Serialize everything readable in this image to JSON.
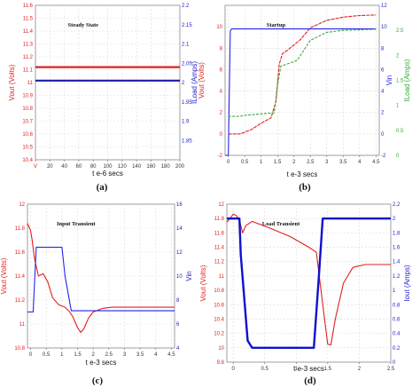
{
  "chart_data": [
    {
      "type": "line",
      "caption": "(a)",
      "title": "Steady State",
      "xlabel": "t e-6 secs",
      "ylabel_left": "Vout (Volts)",
      "ylabel_right": "ILoad (Amps)",
      "xlim": [
        0,
        200
      ],
      "ylim_left": [
        10.4,
        11.6
      ],
      "ylim_right": [
        1.8,
        2.2
      ],
      "xticks": [
        0,
        20,
        40,
        60,
        80,
        100,
        120,
        140,
        160,
        180,
        200
      ],
      "xtick_labels": [
        "V",
        "20",
        "40",
        "60",
        "80",
        "100",
        "120",
        "140",
        "160",
        "180",
        "200"
      ],
      "yticks_left": [
        10.4,
        10.5,
        10.6,
        10.7,
        10.8,
        10.9,
        11,
        11.1,
        11.2,
        11.3,
        11.4,
        11.5,
        11.6
      ],
      "yticks_right": [
        1.8,
        1.85,
        1.9,
        1.95,
        2,
        2.05,
        2.1,
        2.15,
        2.2
      ],
      "ytick_labels_right": [
        "",
        "1.85",
        "1.9",
        "1.95",
        "2",
        "2.05",
        "2.1",
        "2.15",
        "2.2"
      ],
      "grid": true,
      "series": [
        {
          "axis": "left",
          "color": "#e02020",
          "x": [
            0,
            200
          ],
          "y": [
            11.12,
            11.12
          ]
        },
        {
          "axis": "right",
          "color": "#1a1aaa",
          "x": [
            0,
            200
          ],
          "y": [
            2.005,
            2.005
          ]
        }
      ]
    },
    {
      "type": "line",
      "caption": "(b)",
      "title": "Startup",
      "xlabel": "t e-3 secs",
      "ylabel_left": "Vout (Volts)",
      "ylabel_right": "Vin",
      "ylabel_right2": "ILoad (Amps)",
      "xlim": [
        -0.1,
        4.6
      ],
      "ylim_left": [
        -2,
        12
      ],
      "ylim_right": [
        -2,
        12
      ],
      "ylim_right2": [
        0,
        3
      ],
      "xticks": [
        0,
        0.5,
        1,
        1.5,
        2,
        2.5,
        3,
        3.5,
        4,
        4.5
      ],
      "yticks_left": [
        -2,
        0,
        2,
        4,
        6,
        8,
        10
      ],
      "yticks_right": [
        -2,
        0,
        2,
        4,
        6,
        8,
        10,
        12
      ],
      "yticks_right2": [
        0,
        0.5,
        1,
        1.5,
        2,
        2.5
      ],
      "grid": true,
      "series": [
        {
          "axis": "left",
          "color": "#e02020",
          "x": [
            0,
            0.35,
            0.45,
            0.7,
            1,
            1.3,
            1.45,
            1.55,
            1.65,
            1.8,
            2.2,
            2.5,
            3,
            3.5,
            4,
            4.5
          ],
          "y": [
            0,
            0,
            0.1,
            0.4,
            1,
            1.5,
            3,
            6.5,
            7.5,
            7.8,
            8.8,
            9.9,
            10.6,
            10.9,
            11.05,
            11.1
          ]
        },
        {
          "axis": "right",
          "color": "#2222ee",
          "x": [
            -0.1,
            0,
            0.02,
            0.06,
            0.1,
            0.5,
            2.5,
            4.5
          ],
          "y": [
            -2,
            -2,
            2,
            9.6,
            9.8,
            9.8,
            9.8,
            9.8
          ]
        },
        {
          "axis": "right2",
          "color": "#3aaa3a",
          "x": [
            0,
            0.35,
            0.5,
            1.4,
            1.5,
            1.6,
            2.1,
            2.5,
            3,
            3.5,
            4.5
          ],
          "y": [
            0.78,
            0.78,
            0.8,
            0.85,
            1.4,
            1.78,
            1.9,
            2.3,
            2.46,
            2.5,
            2.52
          ]
        }
      ]
    },
    {
      "type": "line",
      "caption": "(c)",
      "title": "Input Transient",
      "xlabel": "t e-3 secs",
      "ylabel_left": "Vout (Volts)",
      "ylabel_right": "Vin",
      "xlim": [
        -0.1,
        4.6
      ],
      "ylim_left": [
        10.8,
        12
      ],
      "ylim_right": [
        4,
        16
      ],
      "xticks": [
        0,
        0.5,
        1,
        1.5,
        2,
        2.5,
        3,
        3.5,
        4,
        4.5
      ],
      "yticks_left": [
        10.8,
        11,
        11.2,
        11.4,
        11.6,
        11.8,
        12
      ],
      "yticks_right": [
        4,
        6,
        8,
        10,
        12,
        14,
        16
      ],
      "grid": true,
      "series": [
        {
          "axis": "left",
          "color": "#e02020",
          "x": [
            -0.1,
            0,
            0.05,
            0.12,
            0.25,
            0.4,
            0.55,
            0.7,
            0.9,
            1.1,
            1.25,
            1.35,
            1.5,
            1.6,
            1.7,
            1.85,
            2,
            2.3,
            2.6,
            3,
            4,
            4.6
          ],
          "y": [
            11.84,
            11.78,
            11.7,
            11.55,
            11.4,
            11.42,
            11.35,
            11.22,
            11.16,
            11.14,
            11.1,
            11.06,
            10.97,
            10.93,
            10.96,
            11.05,
            11.1,
            11.13,
            11.14,
            11.14,
            11.14,
            11.14
          ]
        },
        {
          "axis": "right",
          "color": "#2222ee",
          "x": [
            -0.1,
            0.08,
            0.18,
            1.0,
            1.1,
            1.3,
            4.6
          ],
          "y": [
            7,
            7,
            12.4,
            12.4,
            10,
            7.1,
            7.1
          ]
        }
      ]
    },
    {
      "type": "line",
      "caption": "(d)",
      "title": "Load Transient",
      "xlabel": "t e-3 secs",
      "ylabel_left": "Vout (Volts)",
      "ylabel_right": "Iout (Amps)",
      "xlim": [
        -0.1,
        2.5
      ],
      "ylim_left": [
        9.8,
        12
      ],
      "ylim_right": [
        0,
        2.2
      ],
      "xticks": [
        0,
        0.5,
        1,
        1.5,
        2,
        2.5
      ],
      "yticks_left": [
        9.8,
        10,
        10.2,
        10.4,
        10.6,
        10.8,
        11,
        11.2,
        11.4,
        11.6,
        11.8,
        12
      ],
      "yticks_right": [
        0,
        0.2,
        0.4,
        0.6,
        0.8,
        1,
        1.2,
        1.4,
        1.6,
        1.8,
        2,
        2.2
      ],
      "grid": true,
      "series": [
        {
          "axis": "left",
          "color": "#e02020",
          "x": [
            -0.1,
            -0.05,
            0,
            0.05,
            0.1,
            0.15,
            0.2,
            0.3,
            0.6,
            0.9,
            1.2,
            1.32,
            1.38,
            1.45,
            1.5,
            1.55,
            1.62,
            1.75,
            1.9,
            2.1,
            2.5
          ],
          "y": [
            11.75,
            11.8,
            11.86,
            11.84,
            11.78,
            11.6,
            11.7,
            11.76,
            11.66,
            11.55,
            11.4,
            11.33,
            10.9,
            10.4,
            10.05,
            10.04,
            10.4,
            10.9,
            11.12,
            11.16,
            11.16
          ]
        },
        {
          "axis": "right",
          "color": "#1111cc",
          "x": [
            -0.1,
            0.05,
            0.1,
            0.12,
            0.23,
            0.3,
            1.28,
            1.36,
            1.42,
            2.5
          ],
          "y": [
            2,
            2,
            2,
            1.5,
            0.3,
            0.2,
            0.2,
            1.2,
            2,
            2
          ]
        }
      ]
    }
  ]
}
